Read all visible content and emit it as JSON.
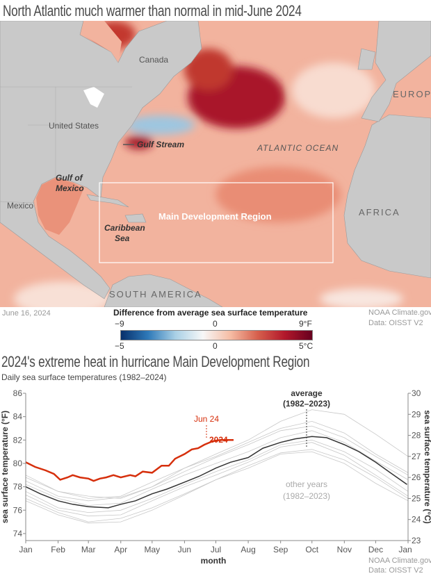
{
  "map": {
    "title": "North Atlantic much warmer than normal in mid-June 2024",
    "date": "June 16, 2024",
    "credit": "NOAA Climate.gov",
    "source": "Data: OISST V2",
    "labels": {
      "canada": "Canada",
      "europe": "EUROPE",
      "united_states": "United States",
      "gulf_stream": "Gulf Stream",
      "atlantic": "ATLANTIC OCEAN",
      "gulf_of_mexico_1": "Gulf of",
      "gulf_of_mexico_2": "Mexico",
      "mexico": "Mexico",
      "caribbean_1": "Caribbean",
      "caribbean_2": "Sea",
      "mdr": "Main Development Region",
      "africa": "AFRICA",
      "south_america": "SOUTH AMERICA"
    },
    "legend": {
      "title": "Difference from average sea surface temperature",
      "f_min": "−9",
      "f_mid": "0",
      "f_max": "9°F",
      "c_min": "−5",
      "c_mid": "0",
      "c_max": "5°C",
      "colors": [
        "#08306b",
        "#2f7ab9",
        "#a9d0e6",
        "#f7f7f7",
        "#f6bda5",
        "#d6604d",
        "#b2182b",
        "#67001f"
      ]
    }
  },
  "chart_data": {
    "type": "line",
    "title": "2024's extreme heat in hurricane Main Development Region",
    "subtitle": "Daily sea surface temperatures (1982–2024)",
    "xlabel": "month",
    "ylabel": "sea surface temperature (°F)",
    "ylabel_right": "sea surface temperature (°C)",
    "ylim": [
      73.4,
      86
    ],
    "ylim_right": [
      23,
      30
    ],
    "yticks": [
      "74",
      "76",
      "78",
      "80",
      "82",
      "84",
      "86"
    ],
    "yticks_right": [
      "23",
      "24",
      "25",
      "26",
      "27",
      "28",
      "29",
      "30"
    ],
    "xticks": [
      "Jan",
      "Feb",
      "Mar",
      "Apr",
      "May",
      "Jun",
      "Jul",
      "Aug",
      "Sep",
      "Oct",
      "Nov",
      "Dec",
      "Jan"
    ],
    "credit": "NOAA Climate.gov",
    "source": "Data: OISST V2",
    "colors": {
      "y2024": "#d62f0c",
      "average": "#333333",
      "other": "#c8c8c8"
    },
    "series": [
      {
        "name": "2024",
        "label": "2024",
        "annotation": "Jun 24",
        "points": [
          [
            "Jan 1",
            80.1
          ],
          [
            "Jan 10",
            79.7
          ],
          [
            "Jan 20",
            79.4
          ],
          [
            "Jan 28",
            79.1
          ],
          [
            "Feb 3",
            78.6
          ],
          [
            "Feb 10",
            78.8
          ],
          [
            "Feb 15",
            79.0
          ],
          [
            "Feb 22",
            78.8
          ],
          [
            "Mar 1",
            78.7
          ],
          [
            "Mar 6",
            78.5
          ],
          [
            "Mar 12",
            78.7
          ],
          [
            "Mar 18",
            78.8
          ],
          [
            "Mar 25",
            79.0
          ],
          [
            "Apr 1",
            78.8
          ],
          [
            "Apr 10",
            79.0
          ],
          [
            "Apr 15",
            78.9
          ],
          [
            "Apr 22",
            79.3
          ],
          [
            "May 1",
            79.2
          ],
          [
            "May 10",
            79.8
          ],
          [
            "May 17",
            79.8
          ],
          [
            "May 23",
            80.4
          ],
          [
            "Jun 1",
            80.8
          ],
          [
            "Jun 8",
            81.2
          ],
          [
            "Jun 14",
            81.3
          ],
          [
            "Jun 20",
            81.6
          ],
          [
            "Jun 28",
            81.9
          ],
          [
            "Jul 5",
            82.0
          ],
          [
            "Jul 12",
            82.0
          ],
          [
            "Jul 18",
            82.0
          ]
        ]
      },
      {
        "name": "average (1982–2023)",
        "label_1": "average",
        "label_2": "(1982–2023)",
        "points": [
          [
            "Jan 1",
            78.0
          ],
          [
            "Jan 15",
            77.4
          ],
          [
            "Feb 1",
            76.8
          ],
          [
            "Feb 15",
            76.5
          ],
          [
            "Mar 1",
            76.3
          ],
          [
            "Mar 20",
            76.2
          ],
          [
            "Apr 1",
            76.5
          ],
          [
            "Apr 15",
            76.8
          ],
          [
            "May 1",
            77.4
          ],
          [
            "May 15",
            77.8
          ],
          [
            "Jun 1",
            78.4
          ],
          [
            "Jun 15",
            78.9
          ],
          [
            "Jul 1",
            79.6
          ],
          [
            "Jul 15",
            80.1
          ],
          [
            "Aug 1",
            80.5
          ],
          [
            "Aug 15",
            81.3
          ],
          [
            "Sep 1",
            81.8
          ],
          [
            "Sep 15",
            82.1
          ],
          [
            "Oct 1",
            82.3
          ],
          [
            "Oct 15",
            82.2
          ],
          [
            "Nov 1",
            81.6
          ],
          [
            "Nov 15",
            81.0
          ],
          [
            "Dec 1",
            80.1
          ],
          [
            "Dec 15",
            79.2
          ],
          [
            "Dec 31",
            78.2
          ]
        ]
      },
      {
        "name": "other years (1982–2023)",
        "label_1": "other years",
        "label_2": "(1982–2023)",
        "years": [
          [
            79.0,
            77.6,
            77.2,
            77.0,
            78.0,
            79.3,
            80.5,
            81.6,
            82.8,
            83.2,
            82.2,
            80.6,
            79.0
          ],
          [
            77.0,
            75.8,
            75.0,
            75.3,
            76.2,
            77.4,
            78.6,
            79.8,
            80.9,
            81.2,
            80.3,
            78.8,
            77.0
          ],
          [
            78.5,
            77.2,
            76.8,
            77.1,
            78.0,
            79.6,
            80.8,
            82.0,
            83.6,
            84.6,
            84.2,
            82.5,
            80.6
          ],
          [
            77.6,
            76.2,
            75.8,
            76.0,
            77.0,
            78.2,
            79.3,
            80.3,
            81.6,
            82.0,
            81.0,
            79.5,
            77.6
          ],
          [
            78.2,
            77.0,
            76.4,
            76.6,
            77.8,
            79.0,
            80.0,
            81.0,
            82.2,
            82.8,
            81.8,
            80.2,
            78.6
          ],
          [
            76.8,
            75.6,
            74.9,
            75.0,
            76.0,
            77.3,
            78.6,
            79.6,
            80.8,
            81.0,
            80.0,
            78.3,
            76.8
          ],
          [
            78.8,
            77.6,
            77.0,
            77.2,
            78.4,
            79.6,
            80.6,
            81.8,
            83.0,
            83.6,
            82.6,
            80.8,
            79.2
          ],
          [
            77.3,
            76.0,
            75.5,
            75.6,
            76.8,
            78.0,
            79.0,
            80.1,
            81.4,
            81.8,
            80.7,
            79.0,
            77.2
          ]
        ]
      }
    ]
  }
}
